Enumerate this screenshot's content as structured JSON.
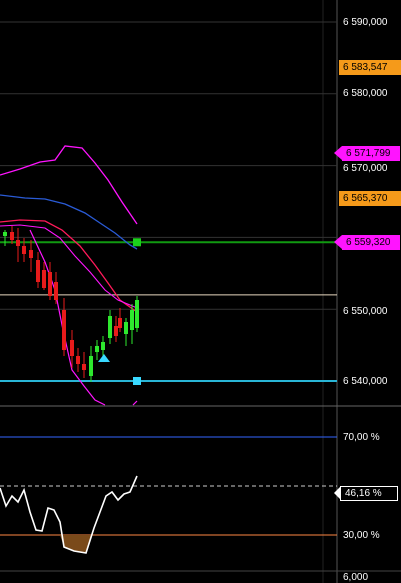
{
  "price_pane": {
    "y_axis_labels": [
      "6 590,000",
      "6 580,000",
      "6 570,000",
      "6 550,000",
      "6 540,000"
    ],
    "price_tags": {
      "last_orange_top": "6 583,547",
      "upper_band": "6 571,799",
      "last_orange_mid": "6 565,370",
      "green_level": "6 559,320"
    },
    "levels": {
      "green_line": 6559.32,
      "white_line": 6552.0,
      "cyan_line": 6540.0
    },
    "colors": {
      "background": "#000000",
      "grid": "#333333",
      "bull": "#2ee82e",
      "bear": "#e81b1b",
      "band": "#ff14ff",
      "ma_blue": "#2a5bd6",
      "ma_red": "#ff1a5a",
      "green_line": "#119911",
      "cyan_line": "#29b5d6",
      "tag_orange": "#f59a1a",
      "tag_magenta": "#ff14ff"
    }
  },
  "oscillator_pane": {
    "y_axis_labels": [
      "70,00 %",
      "30,00 %"
    ],
    "current_value_tag": "46,16 %",
    "bottom_label": "6,000",
    "levels": {
      "upper": 70,
      "lower": 30
    },
    "colors": {
      "upper_line": "#3366ff",
      "lower_line": "#ff8844",
      "fill": "#7a4a1a"
    }
  }
}
